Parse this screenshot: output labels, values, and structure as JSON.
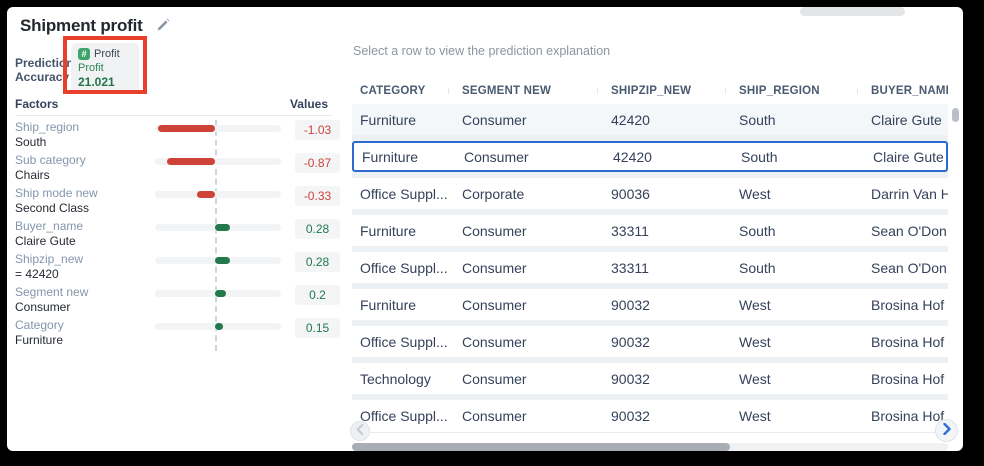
{
  "panel_title": "Shipment profit",
  "prediction_accuracy": {
    "line1": "Prediction",
    "line2": "Accuracy"
  },
  "badge": {
    "hash_glyph": "#",
    "type_label": "Profit",
    "target": "Profit",
    "value": "21.021"
  },
  "factors_section": {
    "left_header": "Factors",
    "right_header": "Values"
  },
  "factors": [
    {
      "feature": "Ship_region",
      "value": "South",
      "contribution": -1.03,
      "display": "-1.03"
    },
    {
      "feature": "Sub category",
      "value": "Chairs",
      "contribution": -0.87,
      "display": "-0.87"
    },
    {
      "feature": "Ship mode new",
      "value": "Second Class",
      "contribution": -0.33,
      "display": "-0.33"
    },
    {
      "feature": "Buyer_name",
      "value": "Claire Gute",
      "contribution": 0.28,
      "display": "0.28"
    },
    {
      "feature": "Shipzip_new",
      "value": "= 42420",
      "contribution": 0.28,
      "display": "0.28"
    },
    {
      "feature": "Segment new",
      "value": "Consumer",
      "contribution": 0.2,
      "display": "0.2"
    },
    {
      "feature": "Category",
      "value": "Furniture",
      "contribution": 0.15,
      "display": "0.15"
    }
  ],
  "table": {
    "hint": "Select a row to view the prediction explanation",
    "columns": [
      "CATEGORY",
      "SEGMENT NEW",
      "SHIPZIP_NEW",
      "SHIP_REGION",
      "BUYER_NAME"
    ],
    "rows": [
      {
        "state": "tinted",
        "cells": [
          "Furniture",
          "Consumer",
          "42420",
          "South",
          "Claire Gute"
        ]
      },
      {
        "state": "selected",
        "cells": [
          "Furniture",
          "Consumer",
          "42420",
          "South",
          "Claire Gute"
        ]
      },
      {
        "state": "",
        "cells": [
          "Office Suppl...",
          "Corporate",
          "90036",
          "West",
          "Darrin Van H"
        ]
      },
      {
        "state": "",
        "cells": [
          "Furniture",
          "Consumer",
          "33311",
          "South",
          "Sean O'Don"
        ]
      },
      {
        "state": "",
        "cells": [
          "Office Suppl...",
          "Consumer",
          "33311",
          "South",
          "Sean O'Don"
        ]
      },
      {
        "state": "",
        "cells": [
          "Furniture",
          "Consumer",
          "90032",
          "West",
          "Brosina Hof"
        ]
      },
      {
        "state": "",
        "cells": [
          "Office Suppl...",
          "Consumer",
          "90032",
          "West",
          "Brosina Hof"
        ]
      },
      {
        "state": "",
        "cells": [
          "Technology",
          "Consumer",
          "90032",
          "West",
          "Brosina Hof"
        ]
      },
      {
        "state": "",
        "cells": [
          "Office Suppl...",
          "Consumer",
          "90032",
          "West",
          "Brosina Hof"
        ]
      }
    ]
  },
  "colors": {
    "negative": "#cd4338",
    "positive": "#23784c",
    "selection": "#2c6ad0",
    "annotation": "#e8402a",
    "badge_green": "#3fa46c",
    "badge_text_green": "#2e8657",
    "badge_value_green": "#1f7448"
  },
  "chart_data": {
    "type": "bar",
    "orientation": "horizontal",
    "title": "Factors",
    "value_axis_label": "Values",
    "categories": [
      "Ship_region = South",
      "Sub category = Chairs",
      "Ship mode new = Second Class",
      "Buyer_name = Claire Gute",
      "Shipzip_new = 42420",
      "Segment new = Consumer",
      "Category = Furniture"
    ],
    "values": [
      -1.03,
      -0.87,
      -0.33,
      0.28,
      0.28,
      0.2,
      0.15
    ],
    "xlim": [
      -1.15,
      1.15
    ],
    "grid": false,
    "zero_line": true,
    "legend_position": "none"
  }
}
